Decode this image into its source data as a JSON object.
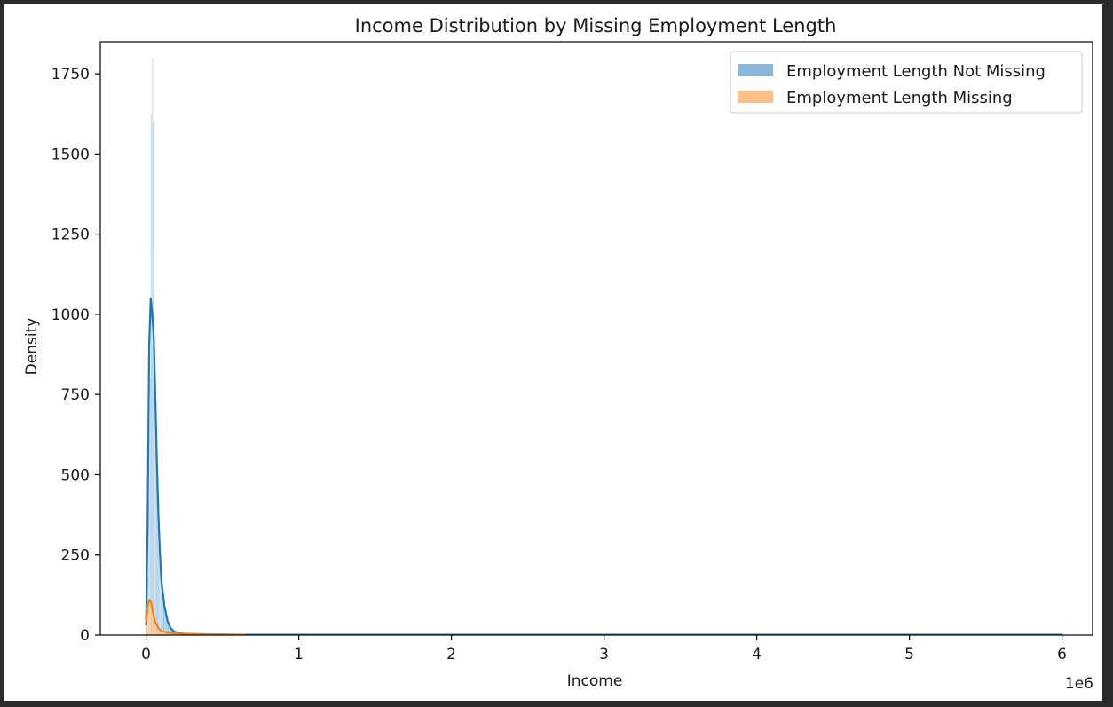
{
  "chart_data": {
    "type": "histogram",
    "title": "Income Distribution by Missing Employment Length",
    "xlabel": "Income",
    "ylabel": "Density",
    "x_offset_label": "1e6",
    "xlim": [
      -300000,
      6200000
    ],
    "ylim": [
      0,
      1850
    ],
    "x_ticks": [
      0,
      1000000,
      2000000,
      3000000,
      4000000,
      5000000,
      6000000
    ],
    "x_tick_labels": [
      "0",
      "1",
      "2",
      "3",
      "4",
      "5",
      "6"
    ],
    "y_ticks": [
      0,
      250,
      500,
      750,
      1000,
      1250,
      1500,
      1750
    ],
    "y_tick_labels": [
      "0",
      "250",
      "500",
      "750",
      "1000",
      "1250",
      "1500",
      "1750"
    ],
    "grid": false,
    "legend_position": "upper right",
    "series": [
      {
        "name": "Employment Length Not Missing",
        "color": "#1f77b4",
        "bar_color": "#8ab8da",
        "hist_bins": [
          {
            "x0": 0,
            "x1": 5000,
            "y": 10
          },
          {
            "x0": 5000,
            "x1": 10000,
            "y": 60
          },
          {
            "x0": 10000,
            "x1": 15000,
            "y": 180
          },
          {
            "x0": 15000,
            "x1": 20000,
            "y": 420
          },
          {
            "x0": 20000,
            "x1": 25000,
            "y": 650
          },
          {
            "x0": 25000,
            "x1": 30000,
            "y": 800
          },
          {
            "x0": 30000,
            "x1": 35000,
            "y": 1625
          },
          {
            "x0": 35000,
            "x1": 40000,
            "y": 900
          },
          {
            "x0": 40000,
            "x1": 45000,
            "y": 1800
          },
          {
            "x0": 45000,
            "x1": 50000,
            "y": 1600
          },
          {
            "x0": 50000,
            "x1": 55000,
            "y": 1200
          },
          {
            "x0": 55000,
            "x1": 60000,
            "y": 800
          },
          {
            "x0": 60000,
            "x1": 65000,
            "y": 700
          },
          {
            "x0": 65000,
            "x1": 70000,
            "y": 600
          },
          {
            "x0": 70000,
            "x1": 75000,
            "y": 520
          },
          {
            "x0": 75000,
            "x1": 80000,
            "y": 430
          },
          {
            "x0": 80000,
            "x1": 85000,
            "y": 360
          },
          {
            "x0": 85000,
            "x1": 90000,
            "y": 300
          },
          {
            "x0": 90000,
            "x1": 95000,
            "y": 240
          },
          {
            "x0": 95000,
            "x1": 100000,
            "y": 200
          },
          {
            "x0": 100000,
            "x1": 110000,
            "y": 140
          },
          {
            "x0": 110000,
            "x1": 120000,
            "y": 100
          },
          {
            "x0": 120000,
            "x1": 130000,
            "y": 70
          },
          {
            "x0": 130000,
            "x1": 140000,
            "y": 50
          },
          {
            "x0": 140000,
            "x1": 150000,
            "y": 35
          },
          {
            "x0": 150000,
            "x1": 170000,
            "y": 25
          },
          {
            "x0": 170000,
            "x1": 200000,
            "y": 14
          },
          {
            "x0": 200000,
            "x1": 250000,
            "y": 7
          },
          {
            "x0": 250000,
            "x1": 350000,
            "y": 4
          },
          {
            "x0": 350000,
            "x1": 650000,
            "y": 2
          }
        ],
        "kde": {
          "x": [
            0,
            10000,
            20000,
            30000,
            40000,
            50000,
            60000,
            70000,
            80000,
            90000,
            100000,
            120000,
            140000,
            160000,
            180000,
            200000,
            250000,
            300000,
            400000,
            600000,
            1000000,
            2000000,
            3000000,
            4000000,
            5000000,
            6000000
          ],
          "y": [
            30,
            350,
            900,
            1050,
            1000,
            930,
            750,
            550,
            380,
            260,
            170,
            90,
            45,
            22,
            12,
            7,
            4,
            3,
            2,
            1,
            1,
            1,
            1,
            1,
            1,
            1
          ]
        }
      },
      {
        "name": "Employment Length Missing",
        "color": "#ff7f0e",
        "bar_color": "#ffbf86",
        "hist_bins": [
          {
            "x0": 0,
            "x1": 10000,
            "y": 30
          },
          {
            "x0": 10000,
            "x1": 20000,
            "y": 80
          },
          {
            "x0": 20000,
            "x1": 30000,
            "y": 105
          },
          {
            "x0": 30000,
            "x1": 40000,
            "y": 90
          },
          {
            "x0": 40000,
            "x1": 50000,
            "y": 60
          },
          {
            "x0": 50000,
            "x1": 60000,
            "y": 40
          },
          {
            "x0": 60000,
            "x1": 80000,
            "y": 25
          },
          {
            "x0": 80000,
            "x1": 100000,
            "y": 14
          },
          {
            "x0": 100000,
            "x1": 150000,
            "y": 7
          },
          {
            "x0": 150000,
            "x1": 250000,
            "y": 4
          },
          {
            "x0": 250000,
            "x1": 650000,
            "y": 2
          }
        ],
        "kde": {
          "x": [
            0,
            10000,
            20000,
            30000,
            40000,
            50000,
            60000,
            80000,
            100000,
            150000,
            200000,
            300000,
            400000,
            500000,
            650000
          ],
          "y": [
            40,
            90,
            110,
            105,
            85,
            60,
            42,
            22,
            12,
            7,
            5,
            4,
            3,
            2,
            1
          ]
        }
      }
    ]
  }
}
